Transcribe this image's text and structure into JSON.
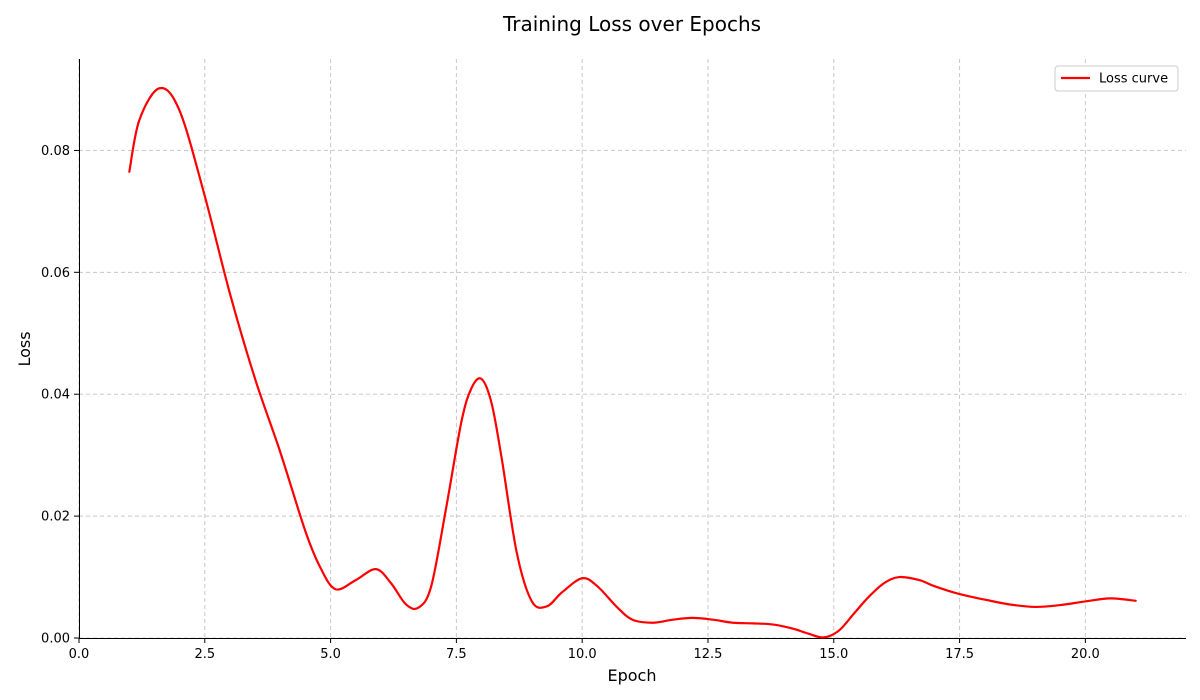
{
  "chart_data": {
    "type": "line",
    "title": "Training Loss over Epochs",
    "xlabel": "Epoch",
    "ylabel": "Loss",
    "xlim": [
      0,
      22
    ],
    "ylim": [
      0,
      0.095
    ],
    "x_ticks": [
      0.0,
      2.5,
      5.0,
      7.5,
      10.0,
      12.5,
      15.0,
      17.5,
      20.0
    ],
    "x_tick_labels": [
      "0.0",
      "2.5",
      "5.0",
      "7.5",
      "10.0",
      "12.5",
      "15.0",
      "17.5",
      "20.0"
    ],
    "y_ticks": [
      0.0,
      0.02,
      0.04,
      0.06,
      0.08
    ],
    "y_tick_labels": [
      "0.00",
      "0.02",
      "0.04",
      "0.06",
      "0.08"
    ],
    "grid": true,
    "legend_position": "top-right",
    "series": [
      {
        "name": "Loss curve",
        "color": "#ff0000",
        "x": [
          1.0,
          1.2,
          1.6,
          2.0,
          2.5,
          3.0,
          3.5,
          4.0,
          4.5,
          4.8,
          5.1,
          5.5,
          5.9,
          6.2,
          6.5,
          6.75,
          7.0,
          7.3,
          7.6,
          7.8,
          8.0,
          8.2,
          8.4,
          8.7,
          9.0,
          9.3,
          9.6,
          10.0,
          10.3,
          10.7,
          11.0,
          11.4,
          11.8,
          12.2,
          12.6,
          13.0,
          13.4,
          13.8,
          14.2,
          14.5,
          14.8,
          15.1,
          15.4,
          15.7,
          16.0,
          16.3,
          16.7,
          17.0,
          17.5,
          18.0,
          18.5,
          19.0,
          19.5,
          20.0,
          20.5,
          21.0
        ],
        "y": [
          0.0765,
          0.085,
          0.0902,
          0.0865,
          0.0725,
          0.0565,
          0.0425,
          0.0305,
          0.0175,
          0.0115,
          0.008,
          0.0095,
          0.0113,
          0.009,
          0.0055,
          0.005,
          0.0085,
          0.0215,
          0.0355,
          0.041,
          0.0425,
          0.0385,
          0.0295,
          0.014,
          0.006,
          0.0052,
          0.0075,
          0.0098,
          0.0085,
          0.005,
          0.003,
          0.0025,
          0.003,
          0.0033,
          0.003,
          0.0025,
          0.0024,
          0.0022,
          0.0015,
          0.0007,
          0.0001,
          0.0012,
          0.004,
          0.0068,
          0.009,
          0.01,
          0.0095,
          0.0085,
          0.0072,
          0.0063,
          0.0055,
          0.0051,
          0.0054,
          0.006,
          0.0065,
          0.0061
        ]
      }
    ]
  }
}
